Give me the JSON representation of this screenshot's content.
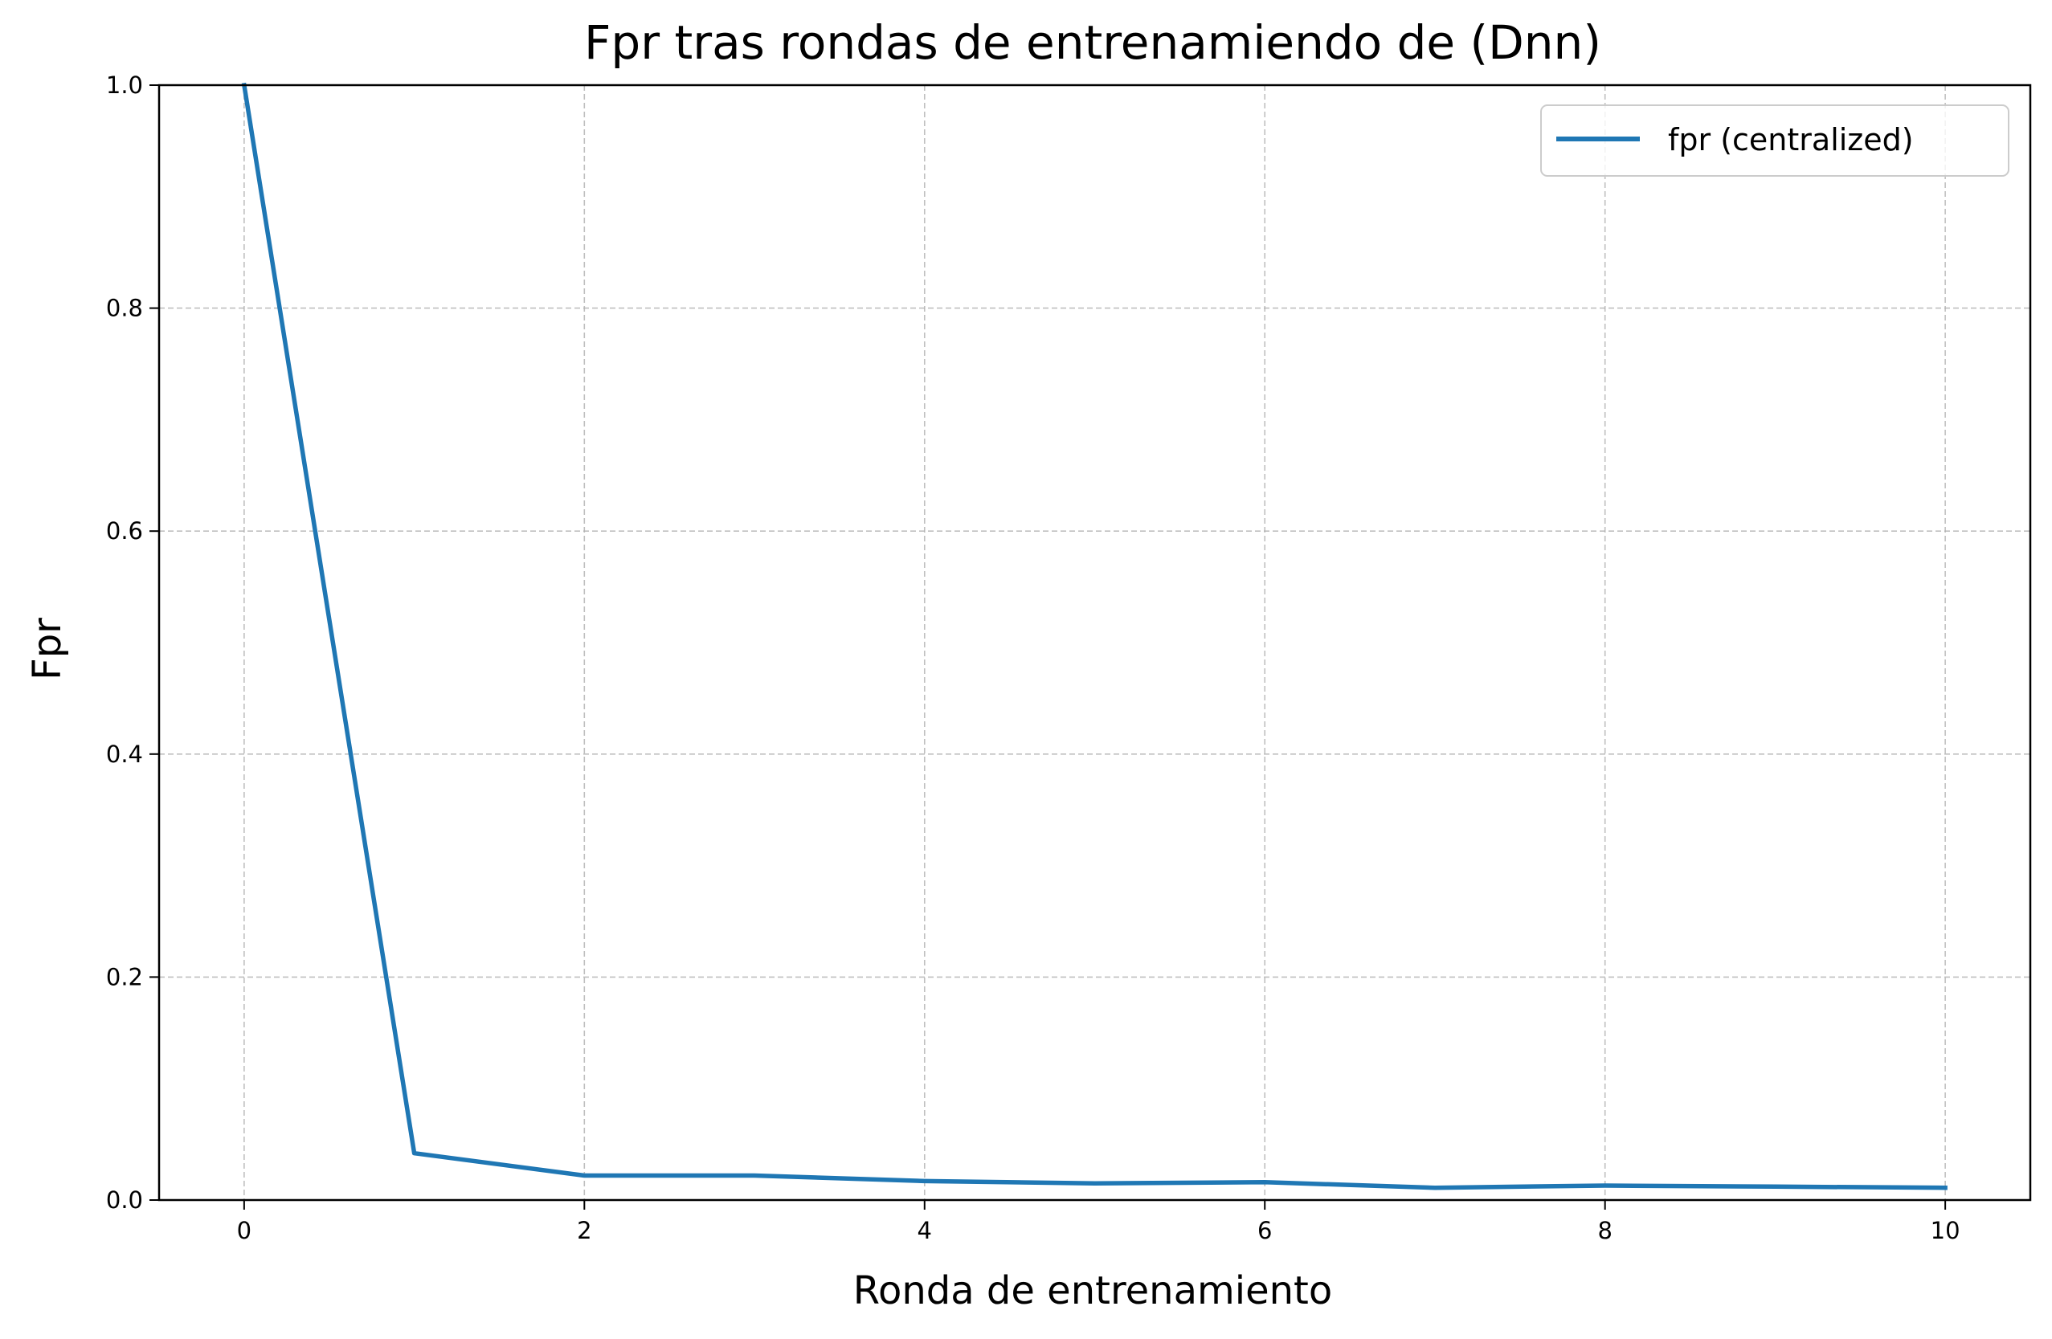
{
  "chart_data": {
    "type": "line",
    "title": "Fpr tras rondas de entrenamiendo de (Dnn)",
    "xlabel": "Ronda de entrenamiento",
    "ylabel": "Fpr",
    "xlim": [
      -0.5,
      10.5
    ],
    "ylim": [
      0.0,
      1.0
    ],
    "xticks": [
      0,
      2,
      4,
      6,
      8,
      10
    ],
    "xtick_labels": [
      "0",
      "2",
      "4",
      "6",
      "8",
      "10"
    ],
    "yticks": [
      0.0,
      0.2,
      0.4,
      0.6,
      0.8,
      1.0
    ],
    "ytick_labels": [
      "0.0",
      "0.2",
      "0.4",
      "0.6",
      "0.8",
      "1.0"
    ],
    "grid": true,
    "legend_position": "top-right",
    "series": [
      {
        "name": "fpr (centralized)",
        "color": "#1f77b4",
        "x": [
          0,
          1,
          2,
          3,
          4,
          5,
          6,
          7,
          8,
          9,
          10
        ],
        "y": [
          1.0,
          0.042,
          0.022,
          0.022,
          0.017,
          0.015,
          0.016,
          0.011,
          0.013,
          0.012,
          0.011
        ]
      }
    ]
  }
}
